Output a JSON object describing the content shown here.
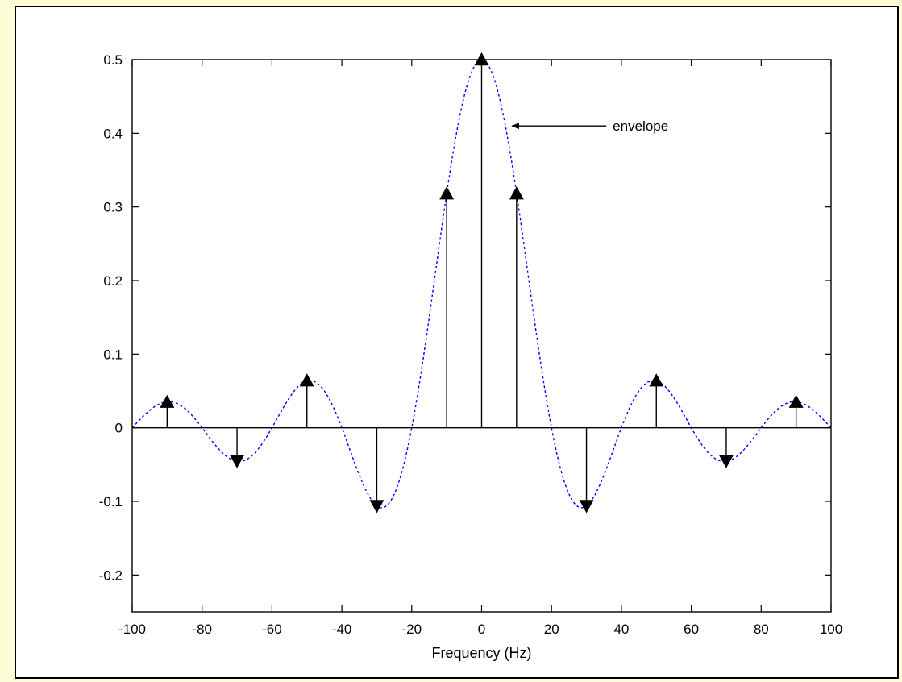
{
  "chart_data": {
    "type": "stem",
    "title": "",
    "xlabel": "Frequency (Hz)",
    "ylabel": "",
    "xlim": [
      -100,
      100
    ],
    "ylim": [
      -0.25,
      0.5
    ],
    "xticks": [
      -100,
      -80,
      -60,
      -40,
      -20,
      0,
      20,
      40,
      60,
      80,
      100
    ],
    "xtick_labels": [
      "-100",
      "-80",
      "-60",
      "-40",
      "-20",
      "0",
      "20",
      "40",
      "60",
      "80",
      "100"
    ],
    "yticks": [
      -0.2,
      -0.1,
      0,
      0.1,
      0.2,
      0.3,
      0.4,
      0.5
    ],
    "ytick_labels": [
      "-0.2",
      "-0.1",
      "0",
      "0.1",
      "0.2",
      "0.3",
      "0.4",
      "0.5"
    ],
    "grid": false,
    "stems": {
      "x": [
        -90,
        -70,
        -50,
        -30,
        -10,
        0,
        10,
        30,
        50,
        70,
        90
      ],
      "y": [
        0.035,
        -0.045,
        0.064,
        -0.106,
        0.318,
        0.5,
        0.318,
        -0.106,
        0.064,
        -0.045,
        0.035
      ]
    },
    "envelope": {
      "style": "dashed",
      "color": "#0000ff",
      "function": "0.5*sinc(f/20)"
    },
    "annotation": {
      "text": "envelope",
      "points_to": [
        8,
        0.41
      ]
    }
  }
}
